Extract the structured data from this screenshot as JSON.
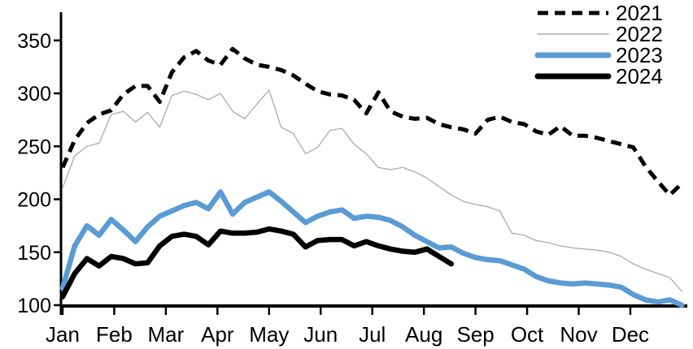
{
  "chart_data": {
    "type": "line",
    "title": "",
    "xlabel": "",
    "ylabel": "",
    "x_axis": {
      "categories": [
        "Jan",
        "Feb",
        "Mar",
        "Apr",
        "May",
        "Jun",
        "Jul",
        "Aug",
        "Sep",
        "Oct",
        "Nov",
        "Dec"
      ],
      "frequency": "weekly"
    },
    "y_axis": {
      "ticks": [
        100,
        150,
        200,
        250,
        300,
        350
      ],
      "range": [
        100,
        360
      ],
      "grid": false
    },
    "legend": {
      "position": "top-right",
      "entries": [
        "2021",
        "2022",
        "2023",
        "2024"
      ]
    },
    "colors": {
      "series_2021": "#000000",
      "series_2022": "#AAAAAA",
      "series_2023": "#5B9BD5",
      "series_2024": "#000000",
      "axis": "#000000"
    },
    "series": [
      {
        "name": "2021",
        "color": "#000000",
        "style": "dashed",
        "width": 5,
        "values": [
          230,
          256,
          272,
          280,
          284,
          299,
          307,
          307,
          292,
          320,
          334,
          340,
          331,
          327,
          342,
          333,
          327,
          325,
          322,
          317,
          309,
          302,
          299,
          298,
          294,
          281,
          301,
          283,
          278,
          276,
          277,
          271,
          268,
          266,
          262,
          275,
          278,
          273,
          271,
          264,
          261,
          269,
          260,
          260,
          258,
          255,
          252,
          249,
          231,
          217,
          204,
          215
        ]
      },
      {
        "name": "2022",
        "color": "#AAAAAA",
        "style": "solid",
        "width": 1.3,
        "values": [
          211,
          241,
          250,
          253,
          280,
          283,
          273,
          282,
          268,
          298,
          302,
          299,
          294,
          300,
          283,
          276,
          290,
          303,
          268,
          262,
          243,
          249,
          265,
          267,
          252,
          243,
          230,
          228,
          230,
          226,
          220,
          212,
          204,
          198,
          195,
          193,
          189,
          168,
          166,
          161,
          159,
          156,
          154,
          153,
          152,
          150,
          146,
          139,
          134,
          130,
          126,
          113
        ]
      },
      {
        "name": "2023",
        "color": "#5B9BD5",
        "style": "solid",
        "width": 6.5,
        "values": [
          116,
          156,
          175,
          166,
          181,
          171,
          160,
          174,
          184,
          189,
          194,
          197,
          191,
          207,
          186,
          197,
          202,
          207,
          198,
          188,
          178,
          184,
          188,
          190,
          182,
          184,
          183,
          180,
          174,
          166,
          160,
          154,
          155,
          149,
          145,
          143,
          142,
          138,
          134,
          127,
          123,
          121,
          120,
          121,
          120,
          119,
          117,
          110,
          105,
          103,
          105,
          100
        ]
      },
      {
        "name": "2024",
        "color": "#000000",
        "style": "solid",
        "width": 6.5,
        "values": [
          108,
          130,
          144,
          137,
          146,
          144,
          139,
          140,
          156,
          165,
          167,
          165,
          157,
          170,
          168,
          168,
          169,
          172,
          170,
          167,
          155,
          161,
          162,
          162,
          156,
          160,
          156,
          153,
          151,
          150,
          153,
          146,
          139
        ]
      }
    ]
  }
}
